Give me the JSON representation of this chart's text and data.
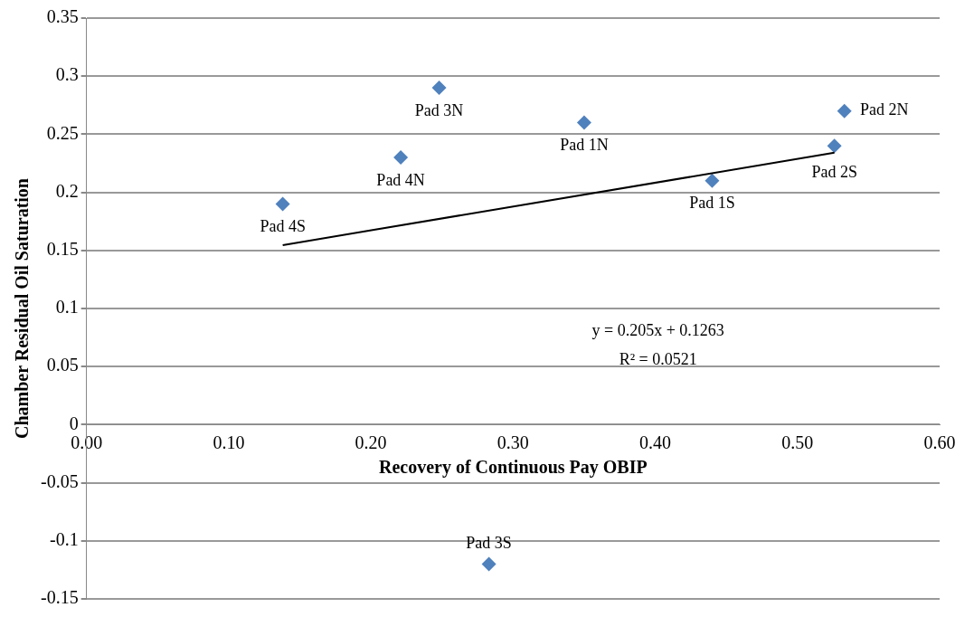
{
  "chart_data": {
    "type": "scatter",
    "xlabel": "Recovery of Continuous Pay OBIP",
    "ylabel": "Chamber Residual Oil Saturation",
    "series": [
      {
        "color": "#4f81bd",
        "marker": "diamond",
        "x": [
          0.138,
          0.221,
          0.248,
          0.35,
          0.44,
          0.533,
          0.526,
          0.283
        ],
        "values": [
          0.19,
          0.23,
          0.29,
          0.26,
          0.21,
          0.27,
          0.24,
          -0.12
        ]
      },
      {
        "type": "line",
        "color": "#000000",
        "marker": "none",
        "x": [
          0.138,
          0.526
        ],
        "values": [
          0.1546,
          0.2341
        ]
      }
    ],
    "xlim": [
      0,
      0.6
    ],
    "xticks": [
      {
        "value": 0,
        "label": "0.00"
      },
      {
        "value": 0.1,
        "label": "0.10"
      },
      {
        "value": 0.2,
        "label": "0.20"
      },
      {
        "value": 0.3,
        "label": "0.30"
      },
      {
        "value": 0.4,
        "label": "0.40"
      },
      {
        "value": 0.5,
        "label": "0.50"
      },
      {
        "value": 0.6,
        "label": "0.60"
      }
    ],
    "ylim": [
      -0.15,
      0.35
    ],
    "yticks": [
      -0.15,
      -0.1,
      -0.05,
      0,
      0.05,
      0.1,
      0.15,
      0.2,
      0.25,
      0.3,
      0.35
    ],
    "grid": "y",
    "legend": false,
    "annotations": [
      {
        "text": "Pad 4S",
        "x": 0.138,
        "y": 0.19
      },
      {
        "text": "Pad 4N",
        "x": 0.221,
        "y": 0.23
      },
      {
        "text": "Pad 3N",
        "x": 0.248,
        "y": 0.29
      },
      {
        "text": "Pad 1N",
        "x": 0.35,
        "y": 0.26
      },
      {
        "text": "Pad 1S",
        "x": 0.44,
        "y": 0.21
      },
      {
        "text": "Pad 2N",
        "x": 0.533,
        "y": 0.27
      },
      {
        "text": "Pad 2S",
        "x": 0.526,
        "y": 0.24
      },
      {
        "text": "Pad 3S",
        "x": 0.283,
        "y": -0.12
      },
      "y = 0.205x + 0.1263",
      "R² = 0.0521"
    ]
  }
}
